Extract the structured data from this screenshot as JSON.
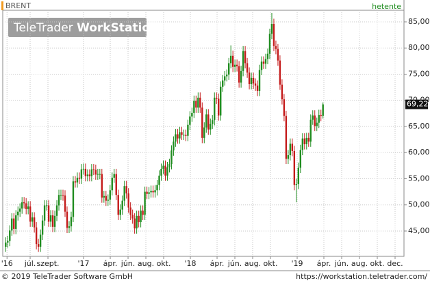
{
  "chart_data": {
    "type": "candlestick",
    "title": "BRENT",
    "interval": "hetente",
    "watermark": {
      "brand": "TeleTrader",
      "product": "WorkStation"
    },
    "footer_left": "© 2019 TeleTrader Software GmbH",
    "footer_right": "https://workstation.teletrader.com/",
    "up_color": "#1f8c1f",
    "down_color": "#c41a1a",
    "grid": true,
    "last_label": {
      "value": 69.22,
      "label": "69,22"
    },
    "xlim": [
      2.92,
      48
    ],
    "ylim": [
      40.16,
      87.22
    ],
    "xticks": [
      {
        "value": 3.4,
        "label": "'16"
      },
      {
        "value": 6,
        "label": "júl."
      },
      {
        "value": 8,
        "label": "szept."
      },
      {
        "value": 12,
        "label": "'17"
      },
      {
        "value": 15,
        "label": "ápr."
      },
      {
        "value": 17,
        "label": "jún."
      },
      {
        "value": 19,
        "label": "aug."
      },
      {
        "value": 21,
        "label": "okt."
      },
      {
        "value": 24,
        "label": "'18"
      },
      {
        "value": 27,
        "label": "ápr."
      },
      {
        "value": 29,
        "label": "jún."
      },
      {
        "value": 31,
        "label": "aug."
      },
      {
        "value": 33,
        "label": "okt."
      },
      {
        "value": 36,
        "label": "'19"
      },
      {
        "value": 39,
        "label": "ápr."
      },
      {
        "value": 41,
        "label": "jún."
      },
      {
        "value": 43,
        "label": "aug."
      },
      {
        "value": 45,
        "label": "okt."
      },
      {
        "value": 47,
        "label": "dec."
      }
    ],
    "yticks": [
      {
        "value": 45,
        "label": "45,00"
      },
      {
        "value": 50,
        "label": "50,00"
      },
      {
        "value": 55,
        "label": "55,00"
      },
      {
        "value": 60,
        "label": "60,00"
      },
      {
        "value": 65,
        "label": "65,00"
      },
      {
        "value": 70,
        "label": "70,00"
      },
      {
        "value": 75,
        "label": "75,00"
      },
      {
        "value": 80,
        "label": "80,00"
      },
      {
        "value": 85,
        "label": "85,00"
      }
    ],
    "x": [
      3.25,
      3.48,
      3.71,
      3.94,
      4.17,
      4.4,
      4.63,
      4.86,
      5.09,
      5.32,
      5.55,
      5.78,
      6.01,
      6.24,
      6.47,
      6.7,
      6.93,
      7.16,
      7.39,
      7.62,
      7.85,
      8.08,
      8.31,
      8.54,
      8.77,
      9.0,
      9.23,
      9.46,
      9.69,
      9.92,
      10.15,
      10.38,
      10.61,
      10.84,
      11.07,
      11.3,
      11.53,
      11.76,
      11.99,
      12.22,
      12.45,
      12.68,
      12.91,
      13.14,
      13.37,
      13.6,
      13.83,
      14.06,
      14.29,
      14.52,
      14.75,
      14.98,
      15.21,
      15.44,
      15.67,
      15.9,
      16.13,
      16.36,
      16.59,
      16.82,
      17.05,
      17.28,
      17.51,
      17.74,
      17.97,
      18.2,
      18.43,
      18.66,
      18.89,
      19.12,
      19.35,
      19.58,
      19.81,
      20.04,
      20.27,
      20.5,
      20.73,
      20.96,
      21.19,
      21.42,
      21.65,
      21.88,
      22.11,
      22.34,
      22.57,
      22.8,
      23.03,
      23.26,
      23.49,
      23.72,
      23.95,
      24.18,
      24.41,
      24.64,
      24.87,
      25.1,
      25.33,
      25.56,
      25.79,
      26.02,
      26.25,
      26.48,
      26.71,
      26.94,
      27.17,
      27.4,
      27.63,
      27.86,
      28.09,
      28.32,
      28.55,
      28.78,
      29.01,
      29.24,
      29.47,
      29.7,
      29.93,
      30.16,
      30.39,
      30.62,
      30.85,
      31.08,
      31.31,
      31.54,
      31.77,
      32.0,
      32.23,
      32.46,
      32.69,
      32.92,
      33.15,
      33.38,
      33.61,
      33.84,
      34.07,
      34.3,
      34.53,
      34.76,
      34.99,
      35.22,
      35.45,
      35.68,
      35.91,
      36.14,
      36.37,
      36.6,
      36.83,
      37.06,
      37.29,
      37.52,
      37.75,
      37.98,
      38.21,
      38.44,
      38.67,
      38.9
    ],
    "open": [
      42.0,
      42.8,
      43.1,
      45.1,
      47.4,
      45.4,
      48.0,
      48.7,
      49.3,
      50.5,
      50.3,
      49.2,
      49.7,
      46.8,
      47.6,
      45.7,
      42.5,
      42.0,
      44.3,
      47.0,
      49.9,
      49.9,
      46.8,
      48.0,
      45.8,
      47.9,
      49.9,
      51.9,
      51.9,
      51.8,
      48.7,
      45.6,
      45.9,
      47.7,
      54.5,
      54.3,
      55.2,
      55.0,
      56.8,
      56.9,
      55.5,
      55.8,
      55.5,
      56.8,
      56.7,
      55.8,
      55.9,
      55.9,
      51.4,
      51.7,
      50.8,
      51.0,
      52.8,
      55.2,
      55.9,
      51.9,
      48.1,
      49.1,
      50.8,
      53.6,
      52.2,
      49.5,
      48.1,
      47.4,
      45.5,
      47.9,
      46.7,
      48.9,
      48.1,
      52.5,
      52.1,
      52.4,
      52.7,
      52.4,
      52.8,
      53.8,
      55.6,
      56.9,
      57.5,
      55.6,
      57.2,
      57.8,
      60.4,
      62.1,
      63.5,
      62.7,
      63.9,
      63.4,
      63.4,
      63.2,
      65.3,
      66.9,
      67.6,
      69.9,
      68.6,
      70.5,
      68.6,
      62.8,
      64.8,
      67.3,
      64.4,
      65.5,
      66.2,
      70.5,
      70.3,
      67.1,
      72.6,
      73.8,
      74.6,
      74.9,
      77.1,
      78.5,
      76.4,
      76.8,
      76.5,
      73.4,
      75.6,
      79.4,
      77.1,
      75.3,
      73.1,
      74.3,
      73.2,
      72.8,
      71.8,
      75.8,
      77.4,
      77.0,
      77.9,
      78.9,
      82.7,
      84.6,
      80.4,
      79.8,
      77.6,
      73.0,
      70.2,
      67.0,
      58.8,
      59.5,
      61.7,
      60.3,
      53.8,
      54.0,
      57.1,
      60.5,
      62.7,
      61.6,
      62.8,
      62.1,
      66.3,
      67.1,
      65.1,
      65.7,
      67.2,
      67.0
    ],
    "high": [
      43.8,
      44.1,
      46.1,
      48.4,
      48.4,
      49.0,
      49.7,
      50.3,
      51.5,
      51.5,
      51.3,
      50.7,
      50.7,
      48.6,
      48.6,
      46.7,
      43.5,
      45.3,
      48.0,
      50.9,
      50.9,
      50.9,
      49.0,
      49.0,
      48.9,
      50.9,
      52.9,
      52.9,
      52.9,
      52.8,
      49.7,
      46.9,
      48.7,
      55.5,
      55.5,
      56.2,
      56.2,
      57.8,
      57.9,
      57.9,
      56.8,
      56.8,
      57.8,
      57.8,
      57.7,
      56.9,
      56.9,
      56.9,
      52.7,
      52.7,
      52.0,
      53.8,
      56.2,
      56.9,
      56.9,
      52.9,
      50.1,
      51.8,
      54.6,
      54.6,
      53.2,
      50.5,
      49.1,
      48.4,
      48.9,
      48.9,
      49.9,
      49.9,
      53.5,
      53.5,
      53.4,
      53.7,
      53.7,
      53.8,
      54.8,
      56.6,
      57.9,
      58.5,
      58.5,
      58.2,
      58.8,
      61.4,
      63.1,
      64.5,
      64.5,
      64.9,
      64.9,
      64.4,
      64.4,
      66.3,
      67.9,
      68.6,
      70.9,
      70.9,
      71.5,
      71.5,
      69.6,
      65.8,
      68.3,
      68.3,
      66.5,
      67.2,
      71.5,
      71.5,
      71.3,
      73.6,
      74.8,
      75.6,
      75.9,
      78.1,
      80.5,
      79.5,
      77.8,
      77.8,
      77.5,
      76.6,
      80.4,
      80.4,
      78.1,
      76.3,
      75.3,
      75.3,
      74.2,
      73.8,
      76.8,
      78.4,
      78.4,
      78.9,
      79.9,
      83.7,
      86.7,
      85.6,
      81.4,
      80.8,
      78.6,
      74.0,
      71.2,
      68.0,
      60.5,
      62.7,
      62.7,
      61.3,
      55.0,
      58.1,
      61.5,
      63.7,
      63.7,
      63.8,
      63.8,
      67.3,
      68.1,
      68.1,
      66.7,
      68.2,
      68.2,
      69.6
    ],
    "low": [
      41.0,
      41.8,
      42.1,
      44.1,
      44.4,
      44.4,
      47.0,
      47.7,
      48.3,
      49.3,
      48.2,
      48.2,
      45.8,
      45.8,
      44.7,
      41.5,
      41.0,
      41.0,
      43.3,
      46.0,
      48.9,
      45.8,
      45.8,
      44.8,
      44.8,
      46.9,
      48.9,
      50.9,
      50.8,
      47.7,
      44.6,
      44.6,
      44.9,
      46.7,
      53.3,
      53.3,
      54.0,
      54.0,
      55.8,
      54.5,
      54.5,
      54.5,
      54.5,
      55.7,
      54.8,
      54.8,
      54.9,
      50.4,
      50.4,
      49.8,
      49.8,
      50.0,
      51.8,
      54.2,
      50.9,
      47.1,
      47.1,
      48.1,
      49.8,
      51.2,
      48.5,
      47.1,
      46.4,
      44.5,
      44.5,
      45.7,
      45.7,
      47.1,
      47.1,
      51.1,
      51.1,
      51.4,
      51.4,
      51.4,
      51.8,
      52.8,
      54.6,
      55.9,
      54.6,
      54.6,
      56.2,
      56.8,
      59.4,
      61.1,
      61.7,
      61.7,
      62.4,
      62.4,
      62.2,
      62.2,
      64.3,
      65.9,
      66.6,
      67.6,
      67.6,
      67.6,
      61.8,
      61.8,
      63.8,
      63.4,
      63.4,
      64.5,
      65.2,
      69.3,
      66.1,
      66.1,
      71.6,
      72.8,
      73.6,
      73.9,
      76.1,
      75.4,
      75.4,
      75.5,
      72.4,
      72.4,
      74.6,
      76.1,
      74.3,
      72.1,
      72.1,
      72.2,
      71.8,
      70.8,
      70.8,
      74.8,
      76.0,
      76.0,
      76.9,
      77.9,
      81.7,
      79.4,
      78.8,
      76.6,
      72.0,
      69.2,
      66.0,
      57.8,
      57.8,
      58.5,
      59.3,
      52.8,
      50.5,
      53.0,
      56.1,
      59.5,
      60.6,
      60.6,
      61.1,
      61.1,
      65.3,
      64.1,
      64.1,
      64.7,
      66.0,
      66.5
    ],
    "close": [
      42.8,
      43.1,
      45.1,
      47.4,
      45.4,
      48.0,
      48.7,
      49.3,
      50.5,
      50.3,
      49.2,
      49.7,
      46.8,
      47.6,
      45.7,
      42.5,
      42.0,
      44.3,
      47.0,
      49.9,
      49.9,
      46.8,
      48.0,
      45.8,
      47.9,
      49.9,
      51.9,
      51.9,
      51.8,
      48.7,
      45.6,
      45.9,
      47.7,
      54.5,
      54.3,
      55.2,
      55.0,
      56.8,
      56.9,
      55.5,
      55.8,
      55.5,
      56.8,
      56.7,
      55.8,
      55.9,
      55.9,
      51.4,
      51.7,
      50.8,
      51.0,
      52.8,
      55.2,
      55.9,
      51.9,
      48.1,
      49.1,
      50.8,
      53.6,
      52.2,
      49.5,
      48.1,
      47.4,
      45.5,
      47.9,
      46.7,
      48.9,
      48.1,
      52.5,
      52.1,
      52.4,
      52.7,
      52.4,
      52.8,
      53.8,
      55.6,
      56.9,
      57.5,
      55.6,
      57.2,
      57.8,
      60.4,
      62.1,
      63.5,
      62.7,
      63.9,
      63.4,
      63.4,
      63.2,
      65.3,
      66.9,
      67.6,
      69.9,
      68.6,
      70.5,
      68.6,
      62.8,
      64.8,
      67.3,
      64.4,
      65.5,
      66.2,
      70.5,
      70.3,
      67.1,
      72.6,
      73.8,
      74.6,
      74.9,
      77.1,
      78.5,
      76.4,
      76.8,
      76.5,
      73.4,
      75.6,
      79.4,
      77.1,
      75.3,
      73.1,
      74.3,
      73.2,
      72.8,
      71.8,
      75.8,
      77.4,
      77.0,
      77.9,
      78.9,
      82.7,
      84.6,
      80.4,
      79.8,
      77.6,
      73.0,
      70.2,
      67.0,
      58.8,
      59.5,
      61.7,
      60.3,
      53.8,
      54.0,
      57.1,
      60.5,
      62.7,
      61.6,
      62.8,
      62.1,
      66.3,
      67.1,
      65.1,
      65.7,
      67.2,
      67.0,
      69.22
    ]
  }
}
